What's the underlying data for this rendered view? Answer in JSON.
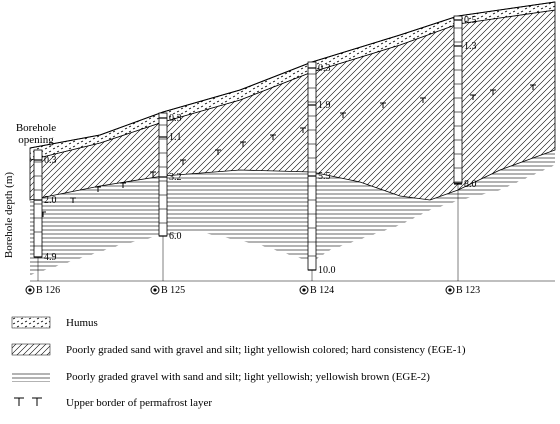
{
  "opening_label": "Borehole opening",
  "axis_label": "Borehole depth (m)",
  "boreholes": [
    {
      "name": "B 126",
      "depths": [
        "0.3",
        "2.0",
        "4.9"
      ]
    },
    {
      "name": "B 125",
      "depths": [
        "0.3",
        "1.1",
        "3.2",
        "6.0"
      ]
    },
    {
      "name": "B 124",
      "depths": [
        "0.3",
        "1.9",
        "5.5",
        "10.0"
      ]
    },
    {
      "name": "B 123",
      "depths": [
        "0.5",
        "1.3",
        "8.0"
      ]
    }
  ],
  "legend": [
    "Humus",
    "Poorly graded sand with gravel and silt; light yellowish colored; hard consistency (EGE-1)",
    "Poorly graded gravel with sand and silt; light yellowish; yellowish brown (EGE-2)",
    "Upper border of permafrost layer"
  ]
}
